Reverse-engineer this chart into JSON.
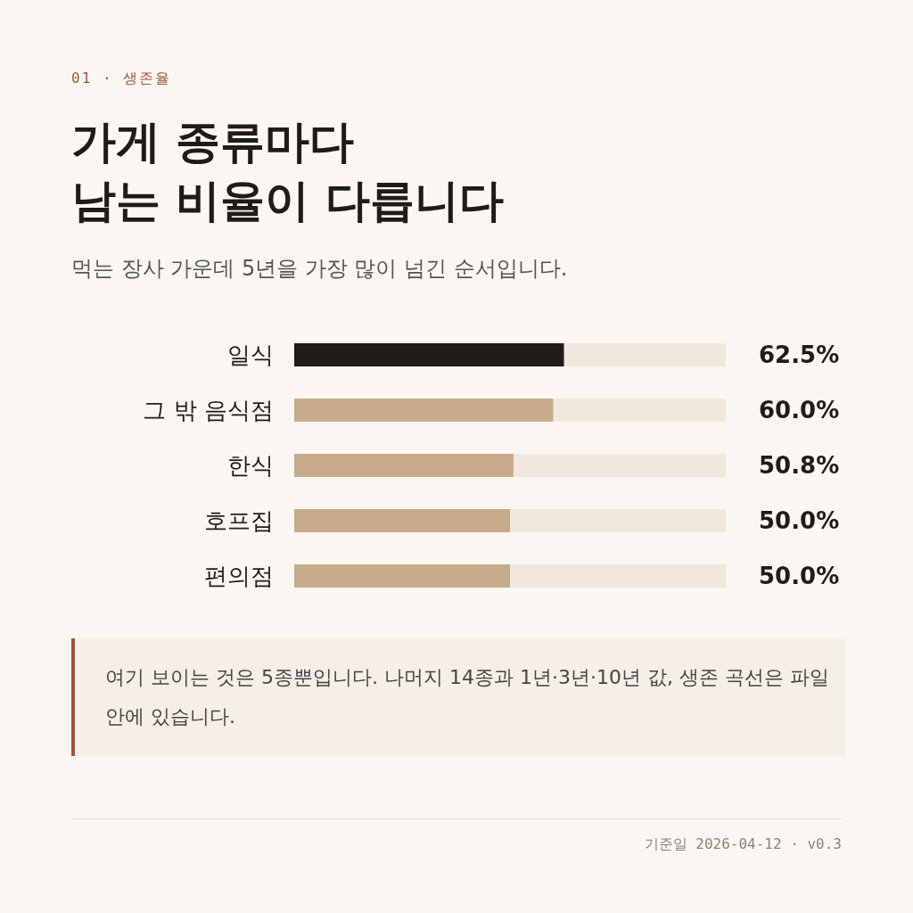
{
  "chart_data": {
    "type": "bar",
    "orientation": "horizontal",
    "subtitle": "먹는 장사 가운데 5년을 가장 많이 넘긴 순서입니다.",
    "title": "가게 종류마다\n남는 비율이 다릅니다",
    "categories": [
      "일식",
      "그 밖 음식점",
      "한식",
      "호프집",
      "편의점"
    ],
    "values": [
      62.5,
      60.0,
      50.8,
      50.0,
      50.0
    ],
    "value_labels": [
      "62.5%",
      "60.0%",
      "50.8%",
      "50.0%",
      "50.0%"
    ],
    "colors": [
      "#1f1b18",
      "#c8ab8a",
      "#c8ab8a",
      "#c8ab8a",
      "#c8ab8a"
    ],
    "xlim": [
      0,
      100
    ],
    "tick_labels": "y",
    "annotations": [
      "01 · 생존율",
      "여기 보이는 것은 5종뿐입니다. 나머지 14종과 1년·3년·10년 값, 생존 곡선은 파일 안에 있습니다.",
      "기준일 2026-04-12 · v0.3"
    ]
  }
}
